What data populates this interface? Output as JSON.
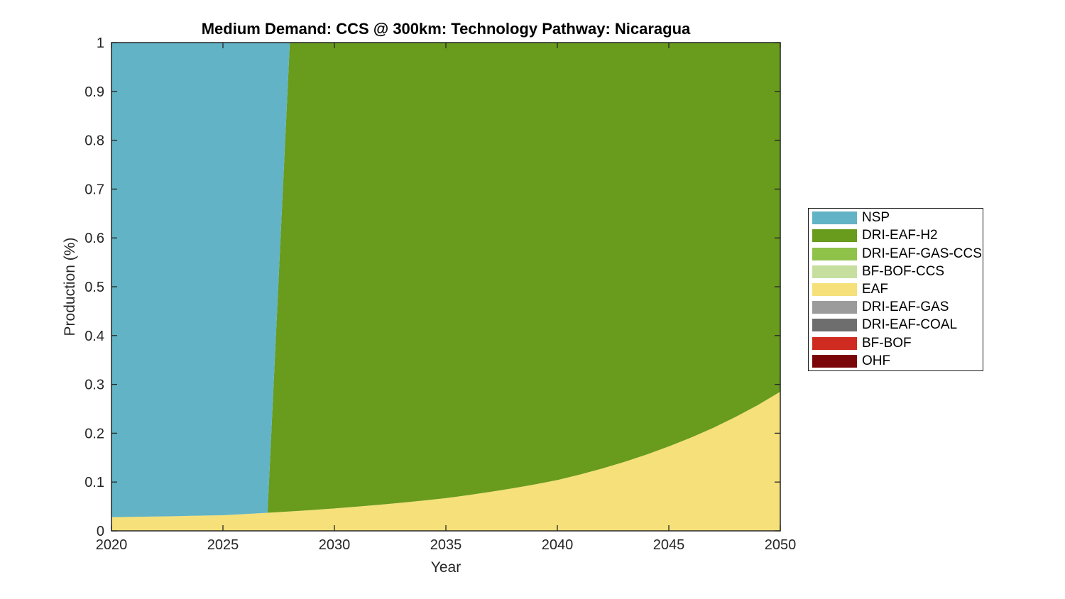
{
  "title": "Medium Demand: CCS @ 300km: Technology Pathway: Nicaragua",
  "xlabel": "Year",
  "ylabel": "Production (%)",
  "chart_data": {
    "type": "area",
    "stacked": true,
    "title": "Medium Demand: CCS @ 300km: Technology Pathway: Nicaragua",
    "xlabel": "Year",
    "ylabel": "Production (%)",
    "xlim": [
      2020,
      2050
    ],
    "ylim": [
      0,
      1
    ],
    "grid": false,
    "legend_position": "right-outside",
    "stack_note": "series stacked bottom-to-top in reverse legend order (EAF bottom, then DRI-EAF-H2, NSP on top)",
    "years": [
      2020,
      2021,
      2022,
      2023,
      2024,
      2025,
      2026,
      2027,
      2028,
      2029,
      2030,
      2031,
      2032,
      2033,
      2034,
      2035,
      2036,
      2037,
      2038,
      2039,
      2040,
      2041,
      2042,
      2043,
      2044,
      2045,
      2046,
      2047,
      2048,
      2049,
      2050
    ],
    "x_ticks": {
      "values": [
        2020,
        2025,
        2030,
        2035,
        2040,
        2045,
        2050
      ],
      "labels": [
        "2020",
        "2025",
        "2030",
        "2035",
        "2040",
        "2045",
        "2050"
      ]
    },
    "y_ticks": {
      "values": [
        0,
        0.1,
        0.2,
        0.3,
        0.4,
        0.5,
        0.6,
        0.7,
        0.8,
        0.9,
        1
      ],
      "labels": [
        "0",
        "0.1",
        "0.2",
        "0.3",
        "0.4",
        "0.5",
        "0.6",
        "0.7",
        "0.8",
        "0.9",
        "1"
      ]
    },
    "series": [
      {
        "name": "NSP",
        "color": "#62B3C5",
        "values": [
          0.972,
          0.9712,
          0.9705,
          0.9697,
          0.9688,
          0.968,
          0.9656,
          0.963,
          0,
          0,
          0,
          0,
          0,
          0,
          0,
          0,
          0,
          0,
          0,
          0,
          0,
          0,
          0,
          0,
          0,
          0,
          0,
          0,
          0,
          0,
          0
        ]
      },
      {
        "name": "DRI-EAF-H2",
        "color": "#699B1D",
        "values": [
          0,
          0,
          0,
          0,
          0,
          0,
          0,
          0,
          0.9602,
          0.9572,
          0.954,
          0.9504,
          0.9465,
          0.9424,
          0.9379,
          0.933,
          0.9268,
          0.9201,
          0.9128,
          0.9048,
          0.896,
          0.8849,
          0.8726,
          0.8589,
          0.8438,
          0.827,
          0.8088,
          0.7888,
          0.7666,
          0.7421,
          0.715
        ]
      },
      {
        "name": "DRI-EAF-GAS-CCS",
        "color": "#8EC249",
        "values": [
          0,
          0,
          0,
          0,
          0,
          0,
          0,
          0,
          0,
          0,
          0,
          0,
          0,
          0,
          0,
          0,
          0,
          0,
          0,
          0,
          0,
          0,
          0,
          0,
          0,
          0,
          0,
          0,
          0,
          0,
          0
        ]
      },
      {
        "name": "BF-BOF-CCS",
        "color": "#C6DF9F",
        "values": [
          0,
          0,
          0,
          0,
          0,
          0,
          0,
          0,
          0,
          0,
          0,
          0,
          0,
          0,
          0,
          0,
          0,
          0,
          0,
          0,
          0,
          0,
          0,
          0,
          0,
          0,
          0,
          0,
          0,
          0,
          0
        ]
      },
      {
        "name": "EAF",
        "color": "#F5E07A",
        "values": [
          0.028,
          0.0288,
          0.0295,
          0.0303,
          0.0312,
          0.032,
          0.0344,
          0.037,
          0.0398,
          0.0428,
          0.046,
          0.0496,
          0.0535,
          0.0576,
          0.0621,
          0.067,
          0.0732,
          0.0799,
          0.0872,
          0.0952,
          0.104,
          0.1151,
          0.1274,
          0.1411,
          0.1562,
          0.173,
          0.1912,
          0.2112,
          0.2334,
          0.2579,
          0.285
        ]
      },
      {
        "name": "DRI-EAF-GAS",
        "color": "#9B9B9B",
        "values": [
          0,
          0,
          0,
          0,
          0,
          0,
          0,
          0,
          0,
          0,
          0,
          0,
          0,
          0,
          0,
          0,
          0,
          0,
          0,
          0,
          0,
          0,
          0,
          0,
          0,
          0,
          0,
          0,
          0,
          0,
          0
        ]
      },
      {
        "name": "DRI-EAF-COAL",
        "color": "#6E6E6E",
        "values": [
          0,
          0,
          0,
          0,
          0,
          0,
          0,
          0,
          0,
          0,
          0,
          0,
          0,
          0,
          0,
          0,
          0,
          0,
          0,
          0,
          0,
          0,
          0,
          0,
          0,
          0,
          0,
          0,
          0,
          0,
          0
        ]
      },
      {
        "name": "BF-BOF",
        "color": "#CF2B21",
        "values": [
          0,
          0,
          0,
          0,
          0,
          0,
          0,
          0,
          0,
          0,
          0,
          0,
          0,
          0,
          0,
          0,
          0,
          0,
          0,
          0,
          0,
          0,
          0,
          0,
          0,
          0,
          0,
          0,
          0,
          0,
          0
        ]
      },
      {
        "name": "OHF",
        "color": "#7B060A",
        "values": [
          0,
          0,
          0,
          0,
          0,
          0,
          0,
          0,
          0,
          0,
          0,
          0,
          0,
          0,
          0,
          0,
          0,
          0,
          0,
          0,
          0,
          0,
          0,
          0,
          0,
          0,
          0,
          0,
          0,
          0,
          0
        ]
      }
    ]
  }
}
